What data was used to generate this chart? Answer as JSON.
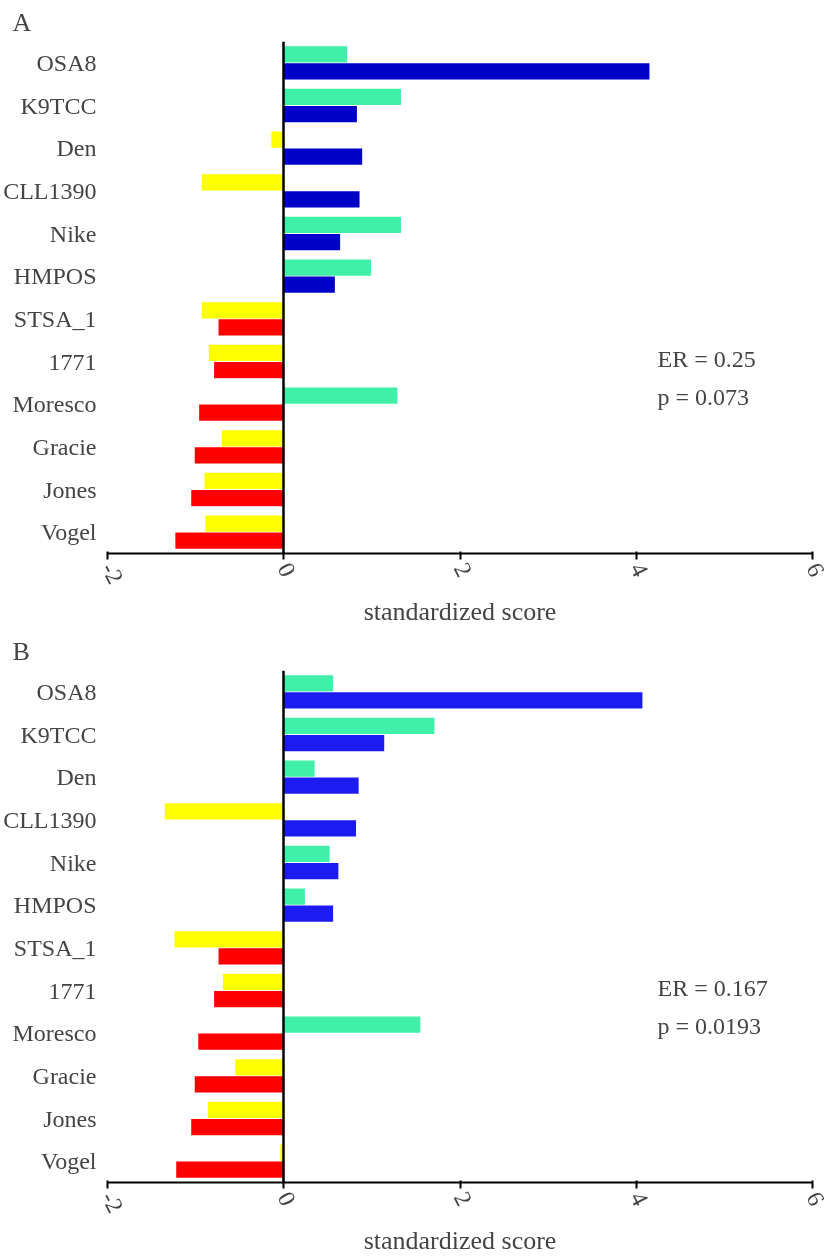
{
  "chart_data": [
    {
      "type": "bar",
      "orientation": "horizontal",
      "title": "A",
      "xlabel": "standardized score",
      "categories": [
        "OSA8",
        "K9TCC",
        "Den",
        "CLL1390",
        "Nike",
        "HMPOS",
        "STSA_1",
        "1771",
        "Moresco",
        "Gracie",
        "Jones",
        "Vogel"
      ],
      "series": [
        {
          "values": [
            0.72,
            1.33,
            -0.14,
            -0.93,
            1.33,
            0.99,
            -0.93,
            -0.85,
            1.29,
            -0.7,
            -0.9,
            -0.89
          ],
          "colors": [
            "#40f0a8",
            "#40f0a8",
            "#ffff00",
            "#ffff00",
            "#40f0a8",
            "#40f0a8",
            "#ffff00",
            "#ffff00",
            "#40f0a8",
            "#ffff00",
            "#ffff00",
            "#ffff00"
          ]
        },
        {
          "values": [
            4.15,
            0.83,
            0.89,
            0.86,
            0.64,
            0.58,
            -0.74,
            -0.79,
            -0.96,
            -1.01,
            -1.05,
            -1.23
          ],
          "colors": [
            "#0000c8",
            "#0000c8",
            "#0000c8",
            "#0000c8",
            "#0000c8",
            "#0000c8",
            "#ff0000",
            "#ff0000",
            "#ff0000",
            "#ff0000",
            "#ff0000",
            "#ff0000"
          ]
        }
      ],
      "xlim": [
        -2,
        6
      ],
      "xticks": [
        -2,
        0,
        2,
        4,
        6
      ],
      "annotations": [
        "ER = 0.25",
        "p = 0.073"
      ]
    },
    {
      "type": "bar",
      "orientation": "horizontal",
      "title": "B",
      "xlabel": "standardized score",
      "categories": [
        "OSA8",
        "K9TCC",
        "Den",
        "CLL1390",
        "Nike",
        "HMPOS",
        "STSA_1",
        "1771",
        "Moresco",
        "Gracie",
        "Jones",
        "Vogel"
      ],
      "series": [
        {
          "values": [
            0.56,
            1.71,
            0.35,
            -1.35,
            0.52,
            0.24,
            -1.24,
            -0.69,
            1.55,
            -0.55,
            -0.86,
            -0.04
          ],
          "colors": [
            "#40f0a8",
            "#40f0a8",
            "#40f0a8",
            "#ffff00",
            "#40f0a8",
            "#40f0a8",
            "#ffff00",
            "#ffff00",
            "#40f0a8",
            "#ffff00",
            "#ffff00",
            "#ffff00"
          ]
        },
        {
          "values": [
            4.07,
            1.14,
            0.85,
            0.82,
            0.62,
            0.56,
            -0.74,
            -0.79,
            -0.97,
            -1.01,
            -1.05,
            -1.22
          ],
          "colors": [
            "#1c1cf0",
            "#1c1cf0",
            "#1c1cf0",
            "#1c1cf0",
            "#1c1cf0",
            "#1c1cf0",
            "#ff0000",
            "#ff0000",
            "#ff0000",
            "#ff0000",
            "#ff0000",
            "#ff0000"
          ]
        }
      ],
      "xlim": [
        -2,
        6
      ],
      "xticks": [
        -2,
        0,
        2,
        4,
        6
      ],
      "annotations": [
        "ER = 0.167",
        "p = 0.0193"
      ]
    }
  ]
}
